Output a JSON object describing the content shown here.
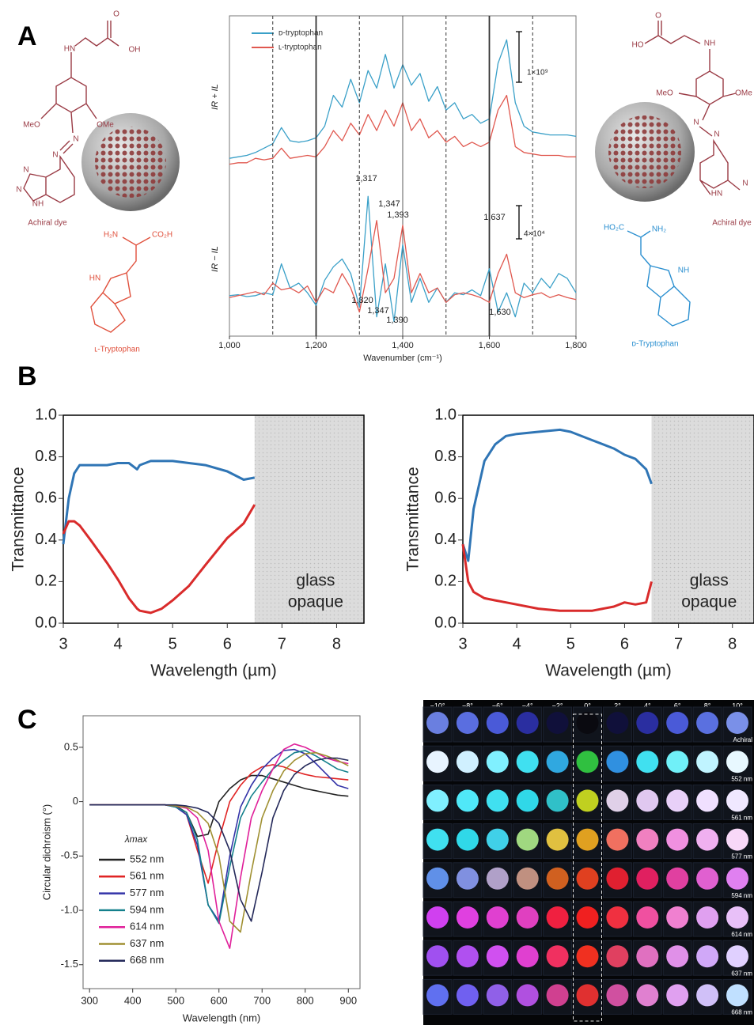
{
  "panels": [
    "A",
    "B",
    "C"
  ],
  "structures": {
    "left_dye": {
      "atoms": [
        "O",
        "HN",
        "OH",
        "MeO",
        "OMe",
        "N",
        "N",
        "N",
        "N",
        "NH"
      ],
      "caption": "Achiral dye"
    },
    "l_trp": {
      "atoms": [
        "H₂N",
        "CO₂H",
        "HN"
      ],
      "caption": "ʟ-Tryptophan"
    },
    "right_dye": {
      "atoms": [
        "O",
        "HO",
        "NH",
        "MeO",
        "OMe",
        "N",
        "N",
        "HN",
        "N"
      ],
      "caption": "Achiral dye"
    },
    "d_trp": {
      "atoms": [
        "HO₂C",
        "NH₂",
        "NH"
      ],
      "caption": "ᴅ-Tryptophan"
    }
  },
  "chart_data": [
    {
      "type": "line",
      "ylabel": "IR + IL",
      "scale_bar": "1×10⁹",
      "legend": "upper left",
      "xlim": [
        1000,
        1800
      ],
      "ylim": [
        0,
        10
      ],
      "x": [
        1000,
        1020,
        1040,
        1060,
        1080,
        1100,
        1120,
        1140,
        1160,
        1180,
        1200,
        1220,
        1240,
        1260,
        1280,
        1300,
        1320,
        1340,
        1360,
        1380,
        1400,
        1420,
        1440,
        1460,
        1480,
        1500,
        1520,
        1540,
        1560,
        1580,
        1600,
        1620,
        1640,
        1660,
        1680,
        1700,
        1720,
        1740,
        1760,
        1780,
        1800
      ],
      "series": [
        {
          "name": "ᴅ-tryptophan",
          "color": "#3aa0c8",
          "values": [
            0.8,
            0.9,
            1.0,
            1.2,
            1.5,
            1.8,
            2.9,
            2.0,
            1.9,
            2.0,
            2.2,
            3.0,
            5.1,
            4.3,
            6.2,
            4.6,
            6.8,
            5.6,
            7.9,
            5.6,
            7.2,
            5.8,
            6.6,
            4.7,
            5.7,
            4.1,
            4.6,
            3.5,
            3.8,
            3.2,
            3.5,
            7.3,
            8.9,
            4.6,
            3.0,
            2.6,
            2.5,
            2.4,
            2.4,
            2.4,
            2.3
          ]
        },
        {
          "name": "ʟ-tryptophan",
          "color": "#e0584f",
          "values": [
            0.4,
            0.5,
            0.5,
            0.8,
            0.7,
            0.8,
            1.5,
            0.8,
            0.9,
            1.0,
            0.9,
            1.6,
            2.7,
            2.0,
            3.2,
            2.4,
            3.8,
            2.7,
            4.1,
            3.0,
            4.6,
            2.7,
            3.5,
            2.2,
            2.7,
            1.9,
            2.3,
            1.6,
            1.9,
            1.6,
            1.9,
            4.1,
            5.1,
            1.6,
            1.2,
            1.1,
            1.0,
            1.0,
            1.0,
            0.9,
            0.9
          ]
        }
      ]
    },
    {
      "type": "line",
      "ylabel": "IR − IL",
      "xlabel": "Wavenumber (cm⁻¹)",
      "scale_bar": "4×10⁴",
      "xlim": [
        1000,
        1800
      ],
      "ylim": [
        -4,
        12
      ],
      "xticks": [
        {
          "value": 1000,
          "label": "1,000"
        },
        {
          "value": 1200,
          "label": "1,200"
        },
        {
          "value": 1400,
          "label": "1,400"
        },
        {
          "value": 1600,
          "label": "1,600"
        },
        {
          "value": 1800,
          "label": "1,800"
        }
      ],
      "vlines": [
        {
          "x": 1100,
          "style": "dashed"
        },
        {
          "x": 1200,
          "style": "solid"
        },
        {
          "x": 1300,
          "style": "dashed"
        },
        {
          "x": 1400,
          "style": "thin"
        },
        {
          "x": 1500,
          "style": "dashed"
        },
        {
          "x": 1600,
          "style": "solid"
        },
        {
          "x": 1700,
          "style": "dashed"
        }
      ],
      "annotations": [
        "1,317",
        "1,347",
        "1,393",
        "1,637",
        "1,320",
        "1,347",
        "1,390",
        "1,630"
      ],
      "x": [
        1000,
        1020,
        1040,
        1060,
        1080,
        1100,
        1120,
        1140,
        1160,
        1180,
        1200,
        1220,
        1240,
        1260,
        1280,
        1300,
        1320,
        1340,
        1360,
        1380,
        1400,
        1420,
        1440,
        1460,
        1480,
        1500,
        1520,
        1540,
        1560,
        1580,
        1600,
        1620,
        1640,
        1660,
        1680,
        1700,
        1720,
        1740,
        1760,
        1780,
        1800
      ],
      "series": [
        {
          "color": "#3aa0c8",
          "values": [
            0.2,
            0.3,
            0.1,
            0.2,
            0.5,
            0.3,
            3.5,
            1.0,
            1.5,
            0.5,
            -0.8,
            1.8,
            3.2,
            4.0,
            2.5,
            -1.0,
            10.5,
            -2.0,
            3.5,
            -2.5,
            5.5,
            -0.5,
            2.0,
            -0.5,
            1.0,
            -0.5,
            0.5,
            0.3,
            0.8,
            0.2,
            3.0,
            -1.5,
            0.5,
            -2.0,
            1.5,
            0.5,
            2.0,
            1.0,
            2.5,
            2.0,
            0.5
          ]
        },
        {
          "color": "#e0584f",
          "values": [
            0.0,
            0.2,
            0.4,
            0.6,
            0.3,
            1.5,
            0.8,
            1.0,
            0.5,
            1.2,
            -0.5,
            1.0,
            0.5,
            2.5,
            1.0,
            -1.5,
            3.0,
            8.0,
            0.5,
            2.0,
            7.5,
            0.5,
            2.5,
            0.5,
            1.0,
            -0.5,
            0.3,
            0.5,
            0.3,
            0.0,
            -0.5,
            2.5,
            4.5,
            0.5,
            0.0,
            0.3,
            0.5,
            0.0,
            0.3,
            0.0,
            -0.2
          ]
        }
      ]
    },
    {
      "type": "line",
      "xlabel": "Wavelength (µm)",
      "ylabel": "Transmittance",
      "xlim": [
        3,
        8.5
      ],
      "ylim": [
        0,
        1
      ],
      "xticks": [
        3,
        4,
        5,
        6,
        7,
        8
      ],
      "yticks": [
        {
          "value": 0,
          "label": "0.0"
        },
        0.2,
        0.4,
        0.6,
        0.8,
        {
          "value": 1,
          "label": "1.0"
        }
      ],
      "opaque_region": [
        6.5,
        8.5
      ],
      "region_label": [
        "glass",
        "opaque"
      ],
      "x": [
        3.0,
        3.1,
        3.2,
        3.3,
        3.5,
        3.8,
        4.0,
        4.2,
        4.35,
        4.4,
        4.6,
        4.8,
        5.0,
        5.3,
        5.6,
        6.0,
        6.3,
        6.5
      ],
      "series": [
        {
          "color": "#2f75b5",
          "values": [
            0.38,
            0.6,
            0.72,
            0.76,
            0.76,
            0.76,
            0.77,
            0.77,
            0.74,
            0.76,
            0.78,
            0.78,
            0.78,
            0.77,
            0.76,
            0.73,
            0.69,
            0.7
          ]
        },
        {
          "color": "#d92b2b",
          "values": [
            0.43,
            0.49,
            0.49,
            0.47,
            0.4,
            0.29,
            0.21,
            0.12,
            0.07,
            0.06,
            0.05,
            0.07,
            0.11,
            0.18,
            0.28,
            0.41,
            0.48,
            0.57
          ]
        }
      ]
    },
    {
      "type": "line",
      "xlabel": "Wavelength (µm)",
      "ylabel": "Transmittance",
      "xlim": [
        3,
        8.4
      ],
      "ylim": [
        0,
        1
      ],
      "xticks": [
        3,
        4,
        5,
        6,
        7,
        8
      ],
      "yticks": [
        {
          "value": 0,
          "label": "0.0"
        },
        0.2,
        0.4,
        0.6,
        0.8,
        {
          "value": 1,
          "label": "1.0"
        }
      ],
      "opaque_region": [
        6.5,
        8.4
      ],
      "region_label": [
        "glass",
        "opaque"
      ],
      "x": [
        3.0,
        3.1,
        3.2,
        3.4,
        3.6,
        3.8,
        4.0,
        4.4,
        4.8,
        5.0,
        5.4,
        5.8,
        6.0,
        6.2,
        6.4,
        6.5
      ],
      "series": [
        {
          "color": "#2f75b5",
          "values": [
            0.38,
            0.3,
            0.55,
            0.78,
            0.86,
            0.9,
            0.91,
            0.92,
            0.93,
            0.92,
            0.88,
            0.84,
            0.81,
            0.79,
            0.74,
            0.67
          ]
        },
        {
          "color": "#d92b2b",
          "values": [
            0.38,
            0.2,
            0.15,
            0.12,
            0.11,
            0.1,
            0.09,
            0.07,
            0.06,
            0.06,
            0.06,
            0.08,
            0.1,
            0.09,
            0.1,
            0.2
          ]
        }
      ]
    },
    {
      "type": "line",
      "xlabel": "Wavelength (nm)",
      "ylabel": "Circular dichroism (°)",
      "legend_title": "λmax",
      "legend": "lower left",
      "xlim": [
        285,
        927
      ],
      "ylim": [
        -1.72,
        0.79
      ],
      "xticks": [
        300,
        400,
        500,
        600,
        700,
        800,
        900
      ],
      "yticks": [
        -1.5,
        {
          "value": -1,
          "label": "-1.0"
        },
        -0.5,
        0,
        0.5
      ],
      "x": [
        300,
        325,
        350,
        375,
        400,
        425,
        450,
        475,
        500,
        525,
        550,
        575,
        600,
        625,
        650,
        675,
        700,
        725,
        750,
        775,
        800,
        825,
        850,
        875,
        900
      ],
      "series": [
        {
          "name": "552 nm",
          "color": "#222222",
          "values": [
            -0.03,
            -0.03,
            -0.03,
            -0.03,
            -0.03,
            -0.03,
            -0.03,
            -0.03,
            -0.04,
            -0.1,
            -0.32,
            -0.3,
            0.0,
            0.12,
            0.2,
            0.24,
            0.24,
            0.21,
            0.18,
            0.15,
            0.12,
            0.1,
            0.08,
            0.06,
            0.05
          ]
        },
        {
          "name": "561 nm",
          "color": "#e02424",
          "values": [
            -0.03,
            -0.03,
            -0.03,
            -0.03,
            -0.03,
            -0.03,
            -0.03,
            -0.03,
            -0.04,
            -0.12,
            -0.45,
            -0.75,
            -0.35,
            0.0,
            0.15,
            0.26,
            0.32,
            0.34,
            0.32,
            0.28,
            0.25,
            0.23,
            0.22,
            0.21,
            0.2
          ]
        },
        {
          "name": "577 nm",
          "color": "#3434a8",
          "values": [
            -0.03,
            -0.03,
            -0.03,
            -0.03,
            -0.03,
            -0.03,
            -0.03,
            -0.03,
            -0.05,
            -0.12,
            -0.4,
            -0.95,
            -1.1,
            -0.5,
            -0.05,
            0.15,
            0.3,
            0.4,
            0.47,
            0.48,
            0.44,
            0.35,
            0.25,
            0.15,
            0.12
          ]
        },
        {
          "name": "594 nm",
          "color": "#14808c",
          "values": [
            -0.03,
            -0.03,
            -0.03,
            -0.03,
            -0.03,
            -0.03,
            -0.03,
            -0.03,
            -0.05,
            -0.1,
            -0.35,
            -0.95,
            -1.12,
            -0.6,
            -0.15,
            0.05,
            0.18,
            0.3,
            0.38,
            0.45,
            0.47,
            0.42,
            0.36,
            0.3,
            0.27
          ]
        },
        {
          "name": "614 nm",
          "color": "#e0209a",
          "values": [
            -0.03,
            -0.03,
            -0.03,
            -0.03,
            -0.03,
            -0.03,
            -0.03,
            -0.03,
            -0.04,
            -0.06,
            -0.15,
            -0.45,
            -1.1,
            -1.35,
            -0.7,
            -0.15,
            0.1,
            0.3,
            0.48,
            0.53,
            0.5,
            0.45,
            0.4,
            0.37,
            0.35
          ]
        },
        {
          "name": "637 nm",
          "color": "#a09032",
          "values": [
            -0.03,
            -0.03,
            -0.03,
            -0.03,
            -0.03,
            -0.03,
            -0.03,
            -0.03,
            -0.04,
            -0.05,
            -0.1,
            -0.2,
            -0.5,
            -1.1,
            -1.2,
            -0.65,
            -0.15,
            0.1,
            0.28,
            0.38,
            0.44,
            0.45,
            0.42,
            0.38,
            0.33
          ]
        },
        {
          "name": "668 nm",
          "color": "#24295a",
          "values": [
            -0.03,
            -0.03,
            -0.03,
            -0.03,
            -0.03,
            -0.03,
            -0.03,
            -0.03,
            -0.03,
            -0.04,
            -0.06,
            -0.1,
            -0.2,
            -0.45,
            -0.9,
            -1.1,
            -0.65,
            -0.15,
            0.1,
            0.25,
            0.33,
            0.38,
            0.4,
            0.4,
            0.38
          ]
        }
      ]
    }
  ],
  "photo_grid": {
    "angles": [
      "−10°",
      "−8°",
      "−6°",
      "−4°",
      "−2°",
      "0°",
      "2°",
      "4°",
      "6°",
      "8°",
      "10°"
    ],
    "rows": [
      {
        "label": "Achiral",
        "colors": [
          "#6a7fe0",
          "#5a6ee0",
          "#4a5ad8",
          "#2a2ea0",
          "#10103a",
          "#0a0a10",
          "#10103a",
          "#2a2ea0",
          "#4a5ad8",
          "#5a70e0",
          "#7a90e8"
        ]
      },
      {
        "label": "552 nm",
        "colors": [
          "#e8f4ff",
          "#d0f0ff",
          "#80f0ff",
          "#40e0f0",
          "#30a8e0",
          "#30c040",
          "#3090e0",
          "#40e0f0",
          "#70f0f8",
          "#c0f4ff",
          "#e8f8ff"
        ]
      },
      {
        "label": "561 nm",
        "colors": [
          "#80f0ff",
          "#50e8f8",
          "#40e0f0",
          "#30d8e8",
          "#30c0c8",
          "#c0d020",
          "#e0d0e8",
          "#e0c8f0",
          "#e8d0f8",
          "#f0e0ff",
          "#f0e8ff"
        ]
      },
      {
        "label": "577 nm",
        "colors": [
          "#40e0f0",
          "#30d8e8",
          "#40d0e8",
          "#a0d880",
          "#e0c040",
          "#e0a020",
          "#f07060",
          "#f080c0",
          "#f090e0",
          "#f0b0f0",
          "#f8d8f8"
        ]
      },
      {
        "label": "594 nm",
        "colors": [
          "#6090e8",
          "#8090e0",
          "#b0a0c8",
          "#c09080",
          "#d06020",
          "#e04020",
          "#e02030",
          "#e02060",
          "#e040a0",
          "#e060d0",
          "#e080f0"
        ]
      },
      {
        "label": "614 nm",
        "colors": [
          "#d040f0",
          "#e040e0",
          "#e040d0",
          "#e040c0",
          "#f02040",
          "#f02020",
          "#f03040",
          "#f050a0",
          "#f080d0",
          "#e0a0f0",
          "#e8c0f8"
        ]
      },
      {
        "label": "637 nm",
        "colors": [
          "#a050f0",
          "#b050f0",
          "#d050f0",
          "#e040d0",
          "#f03060",
          "#f03020",
          "#e04060",
          "#e070c0",
          "#e090e8",
          "#d0a8f8",
          "#e0d0ff"
        ]
      },
      {
        "label": "668 nm",
        "colors": [
          "#6070f0",
          "#7060f0",
          "#9060e8",
          "#b050e0",
          "#d04090",
          "#e03030",
          "#d050a0",
          "#e080d0",
          "#e0a0f0",
          "#d0c0f8",
          "#c0e0ff"
        ]
      }
    ]
  }
}
